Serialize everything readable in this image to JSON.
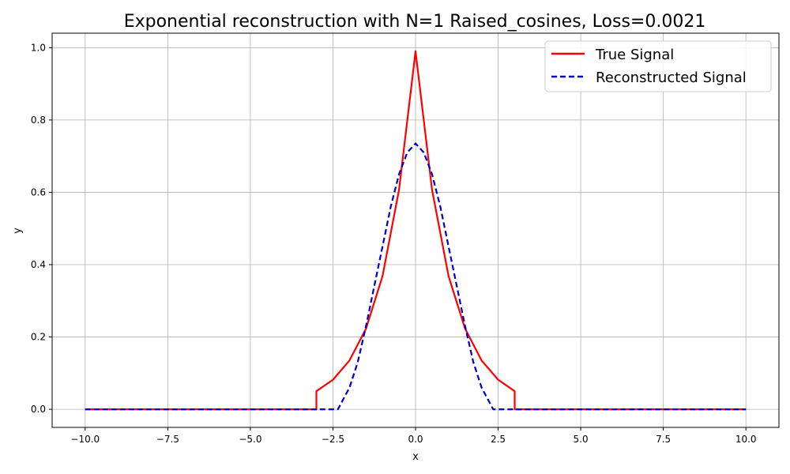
{
  "chart_data": {
    "type": "line",
    "title": "Exponential reconstruction with N=1 Raised_cosines, Loss=0.0021",
    "xlabel": "x",
    "ylabel": "y",
    "xlim": [
      -11.0,
      11.0
    ],
    "ylim": [
      -0.05,
      1.04
    ],
    "xticks": [
      -10.0,
      -7.5,
      -5.0,
      -2.5,
      0.0,
      2.5,
      5.0,
      7.5,
      10.0
    ],
    "xtick_labels": [
      "−10.0",
      "−7.5",
      "−5.0",
      "−2.5",
      "0.0",
      "2.5",
      "5.0",
      "7.5",
      "10.0"
    ],
    "yticks": [
      0.0,
      0.2,
      0.4,
      0.6,
      0.8,
      1.0
    ],
    "ytick_labels": [
      "0.0",
      "0.2",
      "0.4",
      "0.6",
      "0.8",
      "1.0"
    ],
    "grid": true,
    "legend_position": "top-right",
    "series": [
      {
        "name": "True Signal",
        "color": "#ff0000",
        "style": "solid",
        "x": [
          -10.0,
          -3.0,
          -3.0,
          -2.5,
          -2.0,
          -1.5,
          -1.0,
          -0.5,
          0.0,
          0.5,
          1.0,
          1.5,
          2.0,
          2.5,
          3.0,
          3.0,
          10.0
        ],
        "y": [
          0.0,
          0.0,
          0.05,
          0.082,
          0.135,
          0.223,
          0.368,
          0.607,
          0.99,
          0.607,
          0.368,
          0.223,
          0.135,
          0.082,
          0.05,
          0.0,
          0.0
        ]
      },
      {
        "name": "Reconstructed Signal",
        "color": "#0000cc",
        "style": "dashed",
        "x": [
          -10.0,
          -2.35,
          -2.0,
          -1.75,
          -1.5,
          -1.25,
          -1.0,
          -0.75,
          -0.5,
          -0.25,
          0.0,
          0.25,
          0.5,
          0.75,
          1.0,
          1.25,
          1.5,
          1.75,
          2.0,
          2.35,
          10.0
        ],
        "y": [
          0.0,
          0.0,
          0.06,
          0.13,
          0.23,
          0.34,
          0.45,
          0.56,
          0.65,
          0.71,
          0.735,
          0.71,
          0.65,
          0.56,
          0.45,
          0.34,
          0.23,
          0.13,
          0.06,
          0.0,
          0.0
        ]
      }
    ]
  }
}
